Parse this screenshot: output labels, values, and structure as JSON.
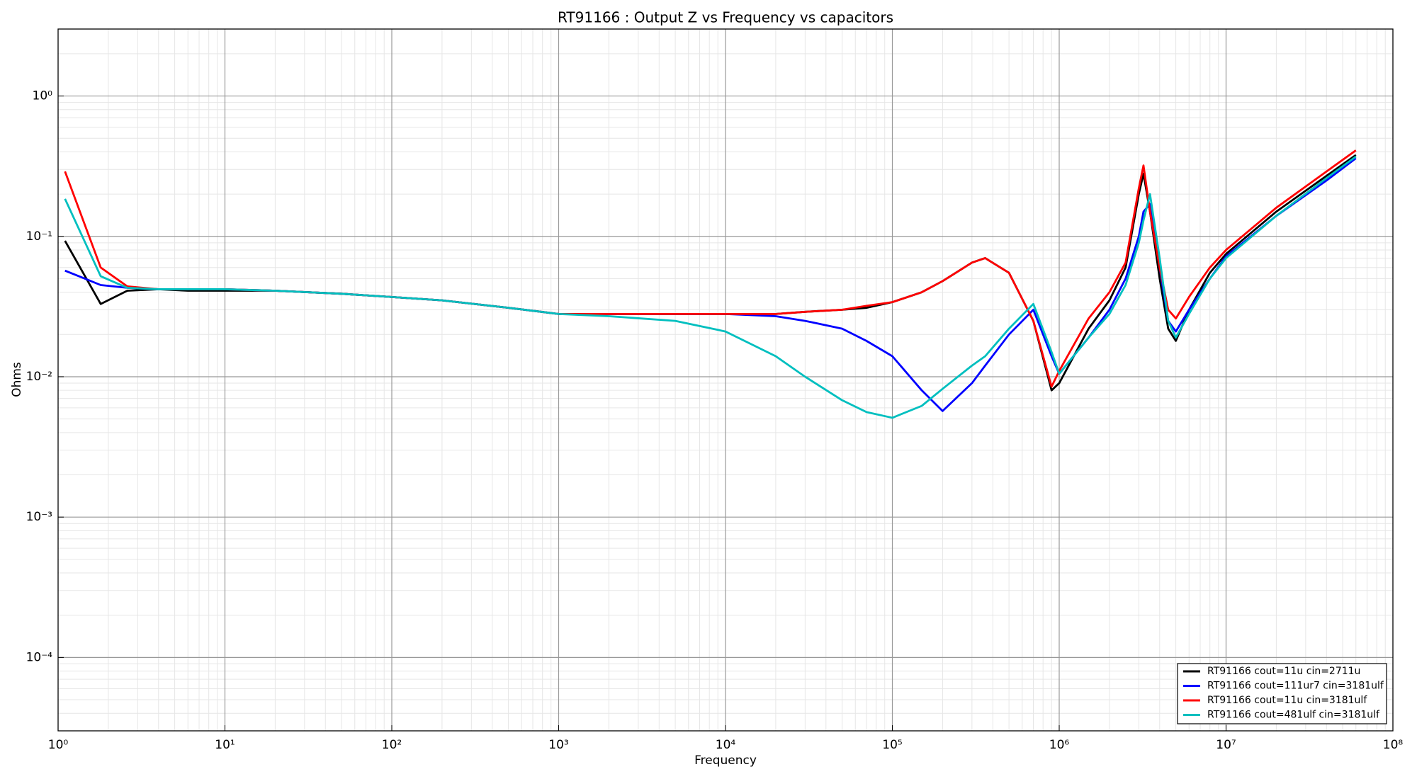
{
  "chart_data": {
    "type": "line",
    "title": "RT91166 : Output Z vs Frequency vs capacitors",
    "xlabel": "Frequency",
    "ylabel": "Ohms",
    "xscale": "log",
    "yscale": "log",
    "grid": true,
    "minor_grid": true,
    "legend": "lower right",
    "xlim": [
      1,
      100000000
    ],
    "ylim": [
      3e-05,
      3
    ],
    "xticks": [
      {
        "value": 1,
        "label": "10⁰"
      },
      {
        "value": 10,
        "label": "10¹"
      },
      {
        "value": 100,
        "label": "10²"
      },
      {
        "value": 1000,
        "label": "10³"
      },
      {
        "value": 10000,
        "label": "10⁴"
      },
      {
        "value": 100000,
        "label": "10⁵"
      },
      {
        "value": 1000000,
        "label": "10⁶"
      },
      {
        "value": 10000000,
        "label": "10⁷"
      },
      {
        "value": 100000000,
        "label": "10⁸"
      }
    ],
    "yticks": [
      {
        "value": 0.0001,
        "label": "10⁻⁴"
      },
      {
        "value": 0.001,
        "label": "10⁻³"
      },
      {
        "value": 0.01,
        "label": "10⁻²"
      },
      {
        "value": 0.1,
        "label": "10⁻¹"
      },
      {
        "value": 1,
        "label": "10⁰"
      }
    ],
    "x": [
      1.1,
      1.8,
      2.6,
      4,
      6,
      10,
      20,
      50,
      100,
      200,
      500,
      1000,
      2000,
      5000,
      10000,
      20000,
      30000,
      50000,
      70000,
      100000,
      150000,
      200000,
      300000,
      360000,
      500000,
      700000,
      900000,
      1000000,
      1500000,
      2000000,
      2500000,
      3000000,
      3200000,
      3500000,
      4000000,
      4500000,
      5000000,
      6000000,
      8000000,
      10000000,
      20000000,
      40000000,
      60000000
    ],
    "series": [
      {
        "name": "RT91166 cout=11u cin=2711u",
        "color": "#000000",
        "values": [
          0.093,
          0.033,
          0.041,
          0.042,
          0.041,
          0.041,
          0.041,
          0.039,
          0.037,
          0.035,
          0.031,
          0.028,
          0.028,
          0.028,
          0.028,
          0.028,
          0.029,
          0.03,
          0.031,
          0.034,
          0.04,
          0.048,
          0.065,
          0.07,
          0.055,
          0.025,
          0.008,
          0.009,
          0.022,
          0.035,
          0.06,
          0.2,
          0.28,
          0.15,
          0.05,
          0.022,
          0.018,
          0.03,
          0.055,
          0.075,
          0.15,
          0.27,
          0.38
        ]
      },
      {
        "name": "RT91166 cout=111ur7 cin=3181ulf",
        "color": "#0000ff",
        "values": [
          0.057,
          0.045,
          0.043,
          0.042,
          0.042,
          0.042,
          0.041,
          0.039,
          0.037,
          0.035,
          0.031,
          0.028,
          0.028,
          0.028,
          0.028,
          0.027,
          0.025,
          0.022,
          0.018,
          0.014,
          0.008,
          0.0057,
          0.009,
          0.012,
          0.02,
          0.03,
          0.014,
          0.0105,
          0.019,
          0.03,
          0.05,
          0.1,
          0.15,
          0.17,
          0.06,
          0.025,
          0.021,
          0.03,
          0.05,
          0.072,
          0.14,
          0.25,
          0.36
        ]
      },
      {
        "name": "RT91166 cout=11u cin=3181ulf",
        "color": "#ff0000",
        "values": [
          0.29,
          0.06,
          0.044,
          0.042,
          0.042,
          0.042,
          0.041,
          0.039,
          0.037,
          0.035,
          0.031,
          0.028,
          0.028,
          0.028,
          0.028,
          0.028,
          0.029,
          0.03,
          0.032,
          0.034,
          0.04,
          0.048,
          0.065,
          0.07,
          0.055,
          0.025,
          0.0085,
          0.011,
          0.026,
          0.04,
          0.065,
          0.22,
          0.32,
          0.15,
          0.06,
          0.03,
          0.026,
          0.037,
          0.06,
          0.08,
          0.16,
          0.29,
          0.41
        ]
      },
      {
        "name": "RT91166 cout=481ulf cin=3181ulf",
        "color": "#00bfbf",
        "values": [
          0.185,
          0.052,
          0.043,
          0.042,
          0.042,
          0.042,
          0.041,
          0.039,
          0.037,
          0.035,
          0.031,
          0.028,
          0.027,
          0.025,
          0.021,
          0.014,
          0.01,
          0.0068,
          0.0056,
          0.0051,
          0.0062,
          0.0082,
          0.012,
          0.014,
          0.022,
          0.033,
          0.015,
          0.0105,
          0.019,
          0.028,
          0.045,
          0.09,
          0.13,
          0.2,
          0.07,
          0.025,
          0.019,
          0.028,
          0.05,
          0.07,
          0.14,
          0.26,
          0.37
        ]
      }
    ]
  }
}
